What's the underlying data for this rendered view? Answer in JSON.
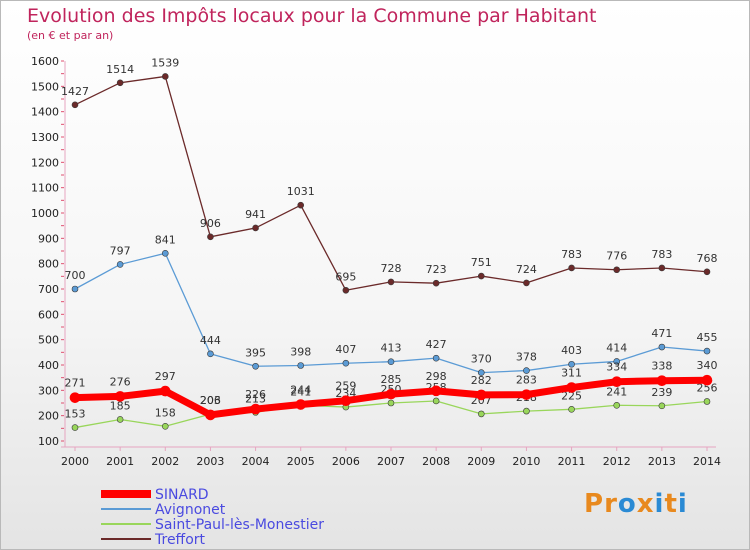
{
  "title": "Evolution des Impôts locaux pour la Commune par Habitant",
  "subtitle": "(en € et par an)",
  "colors": {
    "title": "#c0245c",
    "SINARD": "#ff0000",
    "Avignonet": "#5b9bd5",
    "Saint-Paul-lès-Monestier": "#99d65b",
    "Treffort": "#6b2a2a",
    "legend_text": "#4a4ae0"
  },
  "logo": {
    "text": "Proxiti",
    "letters": [
      "P",
      "r",
      "o",
      "x",
      "i",
      "t",
      "i"
    ],
    "letter_colors": [
      "#e8891e",
      "#e8891e",
      "#2a8ad4",
      "#e8891e",
      "#2a8ad4",
      "#e8891e",
      "#2a8ad4"
    ]
  },
  "chart_data": {
    "type": "line",
    "x": [
      2000,
      2001,
      2002,
      2003,
      2004,
      2005,
      2006,
      2007,
      2008,
      2009,
      2010,
      2011,
      2012,
      2013,
      2014
    ],
    "ylim": [
      100,
      1600
    ],
    "yticks": [
      100,
      200,
      300,
      400,
      500,
      600,
      700,
      800,
      900,
      1000,
      1100,
      1200,
      1300,
      1400,
      1500,
      1600
    ],
    "grid": false,
    "legend_position": "bottom-left",
    "series": [
      {
        "name": "SINARD",
        "values": [
          271,
          276,
          297,
          203,
          226,
          244,
          259,
          285,
          298,
          282,
          283,
          311,
          334,
          338,
          340
        ]
      },
      {
        "name": "Avignonet",
        "values": [
          700,
          797,
          841,
          444,
          395,
          398,
          407,
          413,
          427,
          370,
          378,
          403,
          414,
          471,
          455
        ]
      },
      {
        "name": "Saint-Paul-lès-Monestier",
        "values": [
          153,
          185,
          158,
          206,
          213,
          241,
          234,
          250,
          258,
          207,
          218,
          225,
          241,
          239,
          256
        ]
      },
      {
        "name": "Treffort",
        "values": [
          1427,
          1514,
          1539,
          906,
          941,
          1031,
          695,
          728,
          723,
          751,
          724,
          783,
          776,
          783,
          768
        ]
      }
    ]
  }
}
